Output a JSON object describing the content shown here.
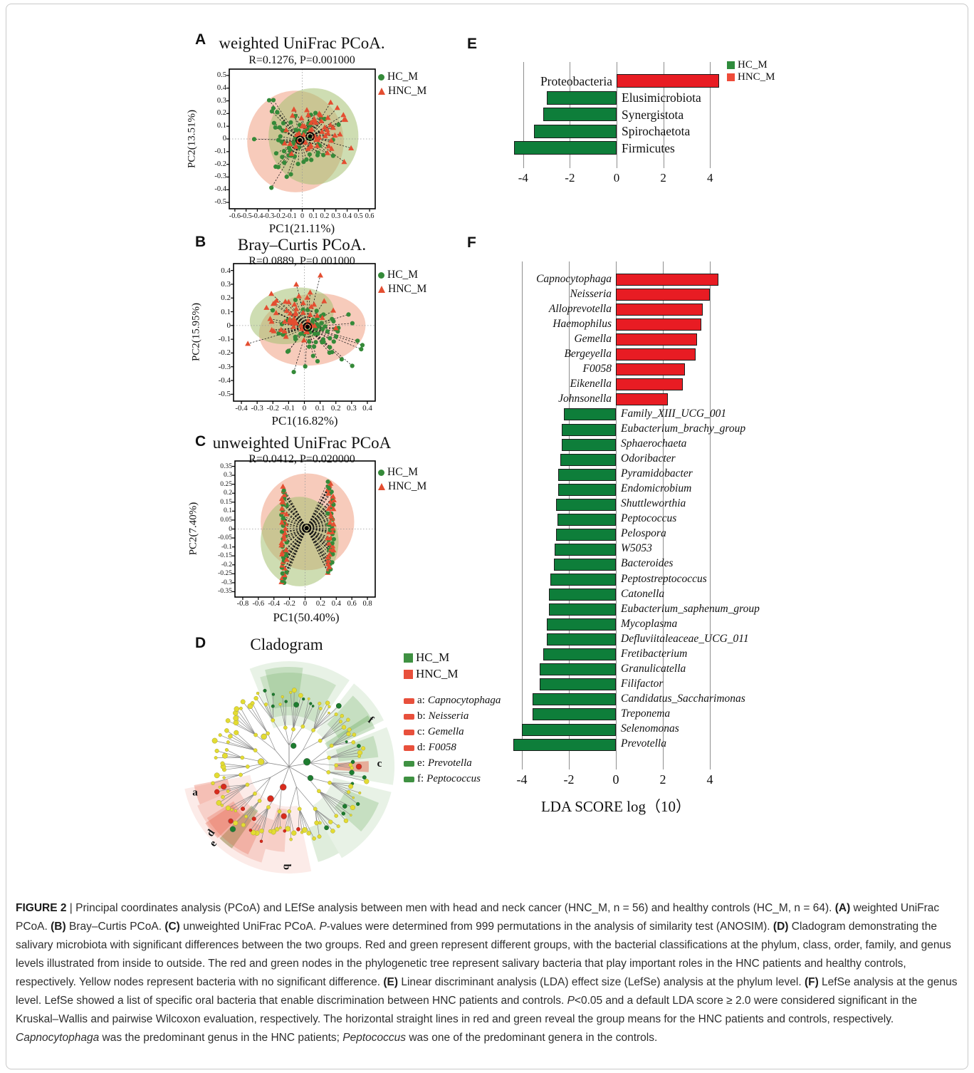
{
  "figure": {
    "label": "FIGURE 2"
  },
  "panelA": {
    "letter": "A",
    "title": "weighted UniFrac PCoA.",
    "stats": "R=0.1276, P=0.001000",
    "xlabel": "PC1(21.11%)",
    "ylabel": "PC2(13.51%)",
    "legend": [
      {
        "label": "HC_M",
        "marker": "circle",
        "color": "#358a39"
      },
      {
        "label": "HNC_M",
        "marker": "triangle",
        "color": "#e44e31"
      }
    ]
  },
  "panelB": {
    "letter": "B",
    "title": "Bray–Curtis PCoA.",
    "stats": "R=0.0889, P=0.001000",
    "xlabel": "PC1(16.82%)",
    "ylabel": "PC2(15.95%)",
    "legend": [
      {
        "label": "HC_M",
        "marker": "circle",
        "color": "#358a39"
      },
      {
        "label": "HNC_M",
        "marker": "triangle",
        "color": "#e44e31"
      }
    ]
  },
  "panelC": {
    "letter": "C",
    "title": "unweighted UniFrac PCoA",
    "stats": "R=0.0412, P=0.020000",
    "xlabel": "PC1(50.40%)",
    "ylabel": "PC2(7.40%)",
    "legend": [
      {
        "label": "HC_M",
        "marker": "circle",
        "color": "#358a39"
      },
      {
        "label": "HNC_M",
        "marker": "triangle",
        "color": "#e44e31"
      }
    ]
  },
  "panelD": {
    "letter": "D",
    "title": "Cladogram",
    "legend_groups": [
      {
        "label": "HC_M",
        "color": "#3f9142"
      },
      {
        "label": "HNC_M",
        "color": "#e8503c"
      }
    ],
    "legend_taxa": [
      {
        "key": "a",
        "label": "Capnocytophaga",
        "color": "#e8503c"
      },
      {
        "key": "b",
        "label": "Neisseria",
        "color": "#e8503c"
      },
      {
        "key": "c",
        "label": "Gemella",
        "color": "#e8503c"
      },
      {
        "key": "d",
        "label": "F0058",
        "color": "#e8503c"
      },
      {
        "key": "e",
        "label": "Prevotella",
        "color": "#3f9142"
      },
      {
        "key": "f",
        "label": "Peptococcus",
        "color": "#3f9142"
      }
    ]
  },
  "panelE": {
    "letter": "E",
    "legend": [
      {
        "label": "HC_M",
        "color": "#2f8b3c"
      },
      {
        "label": "HNC_M",
        "color": "#ef4b39"
      }
    ]
  },
  "panelF": {
    "letter": "F"
  },
  "chart_data": [
    {
      "id": "A",
      "type": "scatter",
      "title": "weighted UniFrac PCoA.",
      "stats": "R=0.1276, P=0.001000",
      "xlabel": "PC1(21.11%)",
      "ylabel": "PC2(13.51%)",
      "xlim": [
        -0.65,
        0.65
      ],
      "ylim": [
        -0.55,
        0.55
      ],
      "x_ticks": [
        -0.6,
        -0.5,
        -0.4,
        -0.3,
        -0.2,
        -0.1,
        0,
        0.1,
        0.2,
        0.3,
        0.4,
        0.5,
        0.6
      ],
      "y_ticks": [
        0.5,
        0.4,
        0.3,
        0.2,
        0.1,
        0,
        -0.1,
        -0.2,
        -0.3,
        -0.4,
        -0.5
      ],
      "series": [
        {
          "name": "HC_M",
          "n": 64,
          "marker": "circle",
          "color": "#358a39"
        },
        {
          "name": "HNC_M",
          "n": 56,
          "marker": "triangle",
          "color": "#e44e31"
        }
      ],
      "ellipse_colors": [
        "#f1a184",
        "#a6c173"
      ],
      "note": "points connected by dashed lines to group centroids; clusters overlap near origin"
    },
    {
      "id": "B",
      "type": "scatter",
      "title": "Bray–Curtis PCoA.",
      "stats": "R=0.0889, P=0.001000",
      "xlabel": "PC1(16.82%)",
      "ylabel": "PC2(15.95%)",
      "xlim": [
        -0.45,
        0.45
      ],
      "ylim": [
        -0.55,
        0.45
      ],
      "x_ticks": [
        -0.4,
        -0.3,
        -0.2,
        -0.1,
        0,
        0.1,
        0.2,
        0.3,
        0.4
      ],
      "y_ticks": [
        0.4,
        0.3,
        0.2,
        0.1,
        0,
        -0.1,
        -0.2,
        -0.3,
        -0.4,
        -0.5
      ],
      "series": [
        {
          "name": "HC_M",
          "n": 64,
          "marker": "circle",
          "color": "#358a39"
        },
        {
          "name": "HNC_M",
          "n": 56,
          "marker": "triangle",
          "color": "#e44e31"
        }
      ],
      "ellipse_colors": [
        "#f1a184",
        "#a6c173"
      ],
      "note": "HNC_M cluster shifted upper-left, HC_M shifted lower-right; dashed spokes to common centroid"
    },
    {
      "id": "C",
      "type": "scatter",
      "title": "unweighted UniFrac PCoA",
      "stats": "R=0.0412, P=0.020000",
      "xlabel": "PC1(50.40%)",
      "ylabel": "PC2(7.40%)",
      "xlim": [
        -0.9,
        0.9
      ],
      "ylim": [
        -0.38,
        0.38
      ],
      "x_ticks": [
        -0.8,
        -0.6,
        -0.4,
        -0.2,
        0,
        0.2,
        0.4,
        0.6,
        0.8
      ],
      "y_ticks": [
        0.35,
        0.3,
        0.25,
        0.2,
        0.15,
        0.1,
        0.05,
        0,
        -0.05,
        -0.1,
        -0.15,
        -0.2,
        -0.25,
        -0.3,
        -0.35
      ],
      "series": [
        {
          "name": "HC_M",
          "n": 64,
          "marker": "circle",
          "color": "#358a39"
        },
        {
          "name": "HNC_M",
          "n": 56,
          "marker": "triangle",
          "color": "#e44e31"
        }
      ],
      "ellipse_colors": [
        "#f1a184",
        "#a6c173"
      ],
      "note": "points form two vertical bands near PC1=-0.27 and PC1=0.33 with dashed bowtie connectors"
    },
    {
      "id": "E",
      "type": "bar",
      "orientation": "horizontal",
      "level": "phylum",
      "categories": [
        "Proteobacteria",
        "Elusimicrobiota",
        "Synergistota",
        "Spirochaetota",
        "Firmicutes"
      ],
      "values": [
        4.4,
        -3.0,
        -3.15,
        -3.55,
        -4.4
      ],
      "groups": [
        "HNC_M",
        "HC_M",
        "HC_M",
        "HC_M",
        "HC_M"
      ],
      "colors": {
        "HC_M": "#0e7e3a",
        "HNC_M": "#e81c23"
      },
      "x_ticks": [
        -4,
        -2,
        0,
        2,
        4
      ],
      "xlim": [
        -5,
        5
      ],
      "italic_labels": false,
      "legend": [
        "HC_M",
        "HNC_M"
      ],
      "legend_position": "top-right"
    },
    {
      "id": "F",
      "type": "bar",
      "orientation": "horizontal",
      "level": "genus",
      "xlabel": "LDA SCORE log（10）",
      "categories": [
        "Capnocytophaga",
        "Neisseria",
        "Alloprevotella",
        "Haemophilus",
        "Gemella",
        "Bergeyella",
        "F0058",
        "Eikenella",
        "Johnsonella",
        "Family_XIII_UCG_001",
        "Eubacterium_brachy_group",
        "Sphaerochaeta",
        "Odoribacter",
        "Pyramidobacter",
        "Endomicrobium",
        "Shuttleworthia",
        "Peptococcus",
        "Pelospora",
        "W5053",
        "Bacteroides",
        "Peptostreptococcus",
        "Catonella",
        "Eubacterium_saphenum_group",
        "Mycoplasma",
        "Defluviitaleaceae_UCG_011",
        "Fretibacterium",
        "Granulicatella",
        "Filifactor",
        "Candidatus_Saccharimonas",
        "Treponema",
        "Selenomonas",
        "Prevotella"
      ],
      "values": [
        4.35,
        4.0,
        3.7,
        3.65,
        3.45,
        3.4,
        2.95,
        2.85,
        2.2,
        -2.2,
        -2.3,
        -2.3,
        -2.35,
        -2.45,
        -2.45,
        -2.55,
        -2.5,
        -2.55,
        -2.6,
        -2.65,
        -2.8,
        -2.85,
        -2.85,
        -2.95,
        -2.95,
        -3.1,
        -3.25,
        -3.25,
        -3.55,
        -3.55,
        -4.0,
        -4.35
      ],
      "groups": [
        "HNC_M",
        "HNC_M",
        "HNC_M",
        "HNC_M",
        "HNC_M",
        "HNC_M",
        "HNC_M",
        "HNC_M",
        "HNC_M",
        "HC_M",
        "HC_M",
        "HC_M",
        "HC_M",
        "HC_M",
        "HC_M",
        "HC_M",
        "HC_M",
        "HC_M",
        "HC_M",
        "HC_M",
        "HC_M",
        "HC_M",
        "HC_M",
        "HC_M",
        "HC_M",
        "HC_M",
        "HC_M",
        "HC_M",
        "HC_M",
        "HC_M",
        "HC_M",
        "HC_M"
      ],
      "colors": {
        "HC_M": "#0e7e3a",
        "HNC_M": "#e81c23"
      },
      "x_ticks": [
        -4,
        -2,
        0,
        2,
        4
      ],
      "xlim": [
        -5,
        5
      ],
      "italic_labels": true
    }
  ],
  "caption": {
    "segments": [
      {
        "t": "FIGURE 2",
        "s": "b"
      },
      {
        "t": " | Principal coordinates analysis (PCoA) and LEfSe analysis between men with head and neck cancer (HNC_M, n = 56) and healthy controls (HC_M, n = 64). ",
        "s": ""
      },
      {
        "t": "(A)",
        "s": "b"
      },
      {
        "t": " weighted UniFrac PCoA. ",
        "s": ""
      },
      {
        "t": "(B)",
        "s": "b"
      },
      {
        "t": " Bray–Curtis PCoA. ",
        "s": ""
      },
      {
        "t": "(C)",
        "s": "b"
      },
      {
        "t": " unweighted UniFrac PCoA. ",
        "s": ""
      },
      {
        "t": "P",
        "s": "i"
      },
      {
        "t": "-values were determined from 999 permutations in the analysis of similarity test (ANOSIM). ",
        "s": ""
      },
      {
        "t": "(D)",
        "s": "b"
      },
      {
        "t": " Cladogram demonstrating the salivary microbiota with significant differences between the two groups. Red and green represent different groups, with the bacterial classifications at the phylum, class, order, family, and genus levels illustrated from inside to outside. The red and green nodes in the phylogenetic tree represent salivary bacteria that play important roles in the HNC patients and healthy controls, respectively. Yellow nodes represent bacteria with no significant difference. ",
        "s": ""
      },
      {
        "t": "(E)",
        "s": "b"
      },
      {
        "t": " Linear discriminant analysis (LDA) effect size (LefSe) analysis at the phylum level. ",
        "s": ""
      },
      {
        "t": "(F)",
        "s": "b"
      },
      {
        "t": " LefSe analysis at the genus level. LefSe showed a list of specific oral bacteria that enable discrimination between HNC patients and controls. ",
        "s": ""
      },
      {
        "t": "P",
        "s": "i"
      },
      {
        "t": "<0.05 and a default LDA score ≥ 2.0 were considered significant in the Kruskal–Wallis and pairwise Wilcoxon evaluation, respectively. The horizontal straight lines in red and green reveal the group means for the HNC patients and controls, respectively. ",
        "s": ""
      },
      {
        "t": "Capnocytophaga",
        "s": "i"
      },
      {
        "t": " was the predominant genus in the HNC patients; ",
        "s": ""
      },
      {
        "t": "Peptococcus",
        "s": "i"
      },
      {
        "t": " was one of the predominant genera in the controls.",
        "s": ""
      }
    ]
  }
}
